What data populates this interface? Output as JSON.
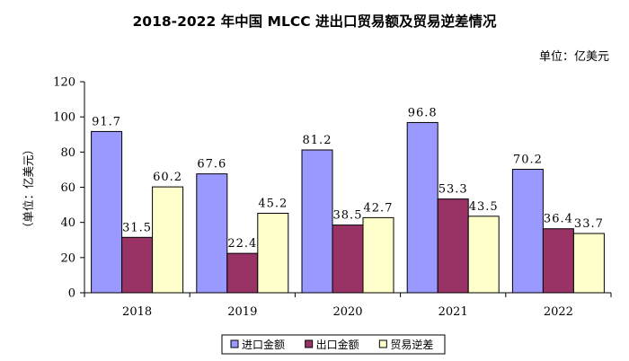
{
  "chart_data": {
    "type": "bar",
    "title": "2018-2022 年中国 MLCC 进出口贸易额及贸易逆差情况",
    "unit_note": "单位：亿美元",
    "ylabel": "（单位：亿美元）",
    "xlabel": "",
    "ylim": [
      0,
      120
    ],
    "yticks": [
      0,
      20,
      40,
      60,
      80,
      100,
      120
    ],
    "categories": [
      "2018",
      "2019",
      "2020",
      "2021",
      "2022"
    ],
    "series": [
      {
        "name": "进口金额",
        "color": "#9999ff",
        "values": [
          91.7,
          67.6,
          81.2,
          96.8,
          70.2
        ]
      },
      {
        "name": "出口金额",
        "color": "#993366",
        "values": [
          31.5,
          22.4,
          38.5,
          53.3,
          36.4
        ]
      },
      {
        "name": "贸易逆差",
        "color": "#ffffcc",
        "values": [
          60.2,
          45.2,
          42.7,
          43.5,
          33.7
        ]
      }
    ],
    "legend_position": "bottom"
  }
}
